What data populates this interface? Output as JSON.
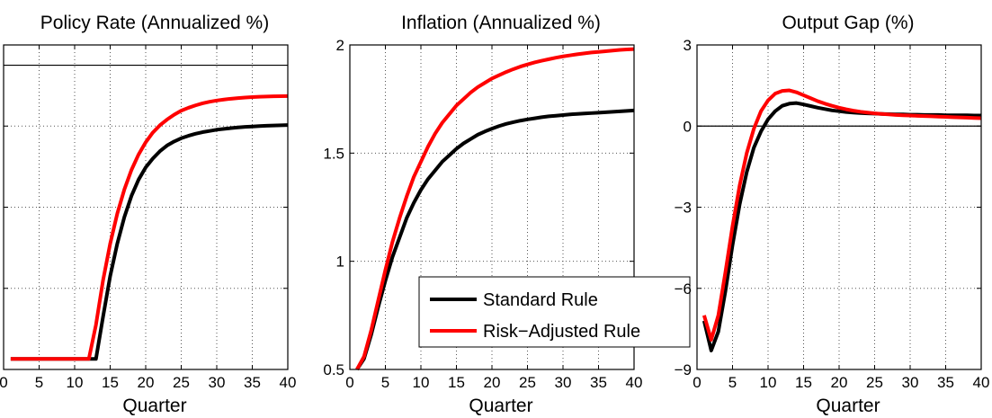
{
  "chart_data": [
    {
      "type": "line",
      "title": "Policy Rate (Annualized %)",
      "xlabel": "Quarter",
      "ylabel": "",
      "xlim": [
        0,
        40
      ],
      "ylim": [
        0,
        4
      ],
      "xticks": [
        0,
        5,
        10,
        15,
        20,
        25,
        30,
        35,
        40
      ],
      "yticks": [
        0,
        1,
        2,
        3,
        4
      ],
      "grid": true,
      "reference_lines": [
        3.75
      ],
      "x": [
        1,
        2,
        3,
        4,
        5,
        6,
        7,
        8,
        9,
        10,
        11,
        12,
        13,
        14,
        15,
        16,
        17,
        18,
        19,
        20,
        21,
        22,
        23,
        24,
        25,
        26,
        27,
        28,
        29,
        30,
        31,
        32,
        33,
        34,
        35,
        36,
        37,
        38,
        39,
        40
      ],
      "series": [
        {
          "name": "Standard Rule",
          "color": "#000000",
          "values": [
            0.13,
            0.13,
            0.13,
            0.13,
            0.13,
            0.13,
            0.13,
            0.13,
            0.13,
            0.13,
            0.13,
            0.13,
            0.13,
            0.65,
            1.15,
            1.55,
            1.88,
            2.14,
            2.34,
            2.49,
            2.6,
            2.69,
            2.76,
            2.81,
            2.85,
            2.88,
            2.905,
            2.925,
            2.94,
            2.955,
            2.965,
            2.975,
            2.983,
            2.99,
            2.995,
            3.0,
            3.004,
            3.007,
            3.01,
            3.012
          ]
        },
        {
          "name": "Risk-Adjusted Rule",
          "color": "#ff0000",
          "values": [
            0.13,
            0.13,
            0.13,
            0.13,
            0.13,
            0.13,
            0.13,
            0.13,
            0.13,
            0.13,
            0.13,
            0.13,
            0.55,
            1.1,
            1.55,
            1.92,
            2.22,
            2.46,
            2.65,
            2.8,
            2.92,
            3.01,
            3.08,
            3.14,
            3.19,
            3.225,
            3.255,
            3.28,
            3.3,
            3.315,
            3.327,
            3.337,
            3.345,
            3.352,
            3.357,
            3.361,
            3.364,
            3.367,
            3.369,
            3.37
          ]
        }
      ]
    },
    {
      "type": "line",
      "title": "Inflation (Annualized %)",
      "xlabel": "Quarter",
      "ylabel": "",
      "xlim": [
        0,
        40
      ],
      "ylim": [
        0.5,
        2
      ],
      "xticks": [
        0,
        5,
        10,
        15,
        20,
        25,
        30,
        35,
        40
      ],
      "yticks": [
        0.5,
        1,
        1.5,
        2
      ],
      "ytick_labels": [
        "0.5",
        "1",
        "1.5",
        "2"
      ],
      "grid": true,
      "legend": {
        "position": "bottom-right",
        "entries": [
          "Standard Rule",
          "Risk−Adjusted Rule"
        ]
      },
      "x": [
        1,
        2,
        3,
        4,
        5,
        6,
        7,
        8,
        9,
        10,
        11,
        12,
        13,
        14,
        15,
        16,
        17,
        18,
        19,
        20,
        21,
        22,
        23,
        24,
        25,
        26,
        27,
        28,
        29,
        30,
        31,
        32,
        33,
        34,
        35,
        36,
        37,
        38,
        39,
        40
      ],
      "series": [
        {
          "name": "Standard Rule",
          "color": "#000000",
          "values": [
            0.5,
            0.55,
            0.66,
            0.79,
            0.91,
            1.02,
            1.11,
            1.2,
            1.27,
            1.33,
            1.38,
            1.42,
            1.46,
            1.49,
            1.52,
            1.545,
            1.565,
            1.585,
            1.6,
            1.613,
            1.625,
            1.635,
            1.643,
            1.65,
            1.656,
            1.661,
            1.666,
            1.67,
            1.673,
            1.676,
            1.679,
            1.681,
            1.683,
            1.685,
            1.687,
            1.689,
            1.691,
            1.693,
            1.695,
            1.697
          ]
        },
        {
          "name": "Risk-Adjusted Rule",
          "color": "#ff0000",
          "values": [
            0.5,
            0.56,
            0.68,
            0.82,
            0.96,
            1.09,
            1.2,
            1.3,
            1.39,
            1.46,
            1.53,
            1.59,
            1.64,
            1.68,
            1.72,
            1.75,
            1.78,
            1.805,
            1.825,
            1.845,
            1.86,
            1.875,
            1.888,
            1.9,
            1.91,
            1.919,
            1.927,
            1.934,
            1.941,
            1.947,
            1.952,
            1.957,
            1.961,
            1.965,
            1.968,
            1.971,
            1.974,
            1.977,
            1.979,
            1.981
          ]
        }
      ]
    },
    {
      "type": "line",
      "title": "Output Gap (%)",
      "xlabel": "Quarter",
      "ylabel": "",
      "xlim": [
        0,
        40
      ],
      "ylim": [
        -9,
        3
      ],
      "xticks": [
        0,
        5,
        10,
        15,
        20,
        25,
        30,
        35,
        40
      ],
      "yticks": [
        -9,
        -6,
        -3,
        0,
        3
      ],
      "ytick_labels": [
        "−9",
        "−6",
        "−3",
        "0",
        "3"
      ],
      "grid": true,
      "reference_lines": [
        0
      ],
      "x": [
        1,
        2,
        3,
        4,
        5,
        6,
        7,
        8,
        9,
        10,
        11,
        12,
        13,
        14,
        15,
        16,
        17,
        18,
        19,
        20,
        21,
        22,
        23,
        24,
        25,
        26,
        27,
        28,
        29,
        30,
        31,
        32,
        33,
        34,
        35,
        36,
        37,
        38,
        39,
        40
      ],
      "series": [
        {
          "name": "Standard Rule",
          "color": "#000000",
          "values": [
            -7.2,
            -8.3,
            -7.6,
            -6.1,
            -4.4,
            -2.9,
            -1.7,
            -0.8,
            -0.2,
            0.25,
            0.55,
            0.75,
            0.83,
            0.85,
            0.8,
            0.74,
            0.68,
            0.63,
            0.58,
            0.55,
            0.52,
            0.5,
            0.48,
            0.47,
            0.46,
            0.45,
            0.44,
            0.43,
            0.43,
            0.42,
            0.42,
            0.41,
            0.41,
            0.41,
            0.4,
            0.4,
            0.4,
            0.4,
            0.39,
            0.39
          ]
        },
        {
          "name": "Risk-Adjusted Rule",
          "color": "#ff0000",
          "values": [
            -7.0,
            -7.9,
            -7.0,
            -5.4,
            -3.7,
            -2.2,
            -1.0,
            -0.1,
            0.55,
            0.95,
            1.2,
            1.3,
            1.32,
            1.25,
            1.14,
            1.03,
            0.92,
            0.83,
            0.75,
            0.68,
            0.62,
            0.57,
            0.53,
            0.5,
            0.47,
            0.45,
            0.43,
            0.41,
            0.4,
            0.39,
            0.38,
            0.37,
            0.36,
            0.35,
            0.34,
            0.33,
            0.32,
            0.31,
            0.3,
            0.29
          ]
        }
      ]
    }
  ]
}
